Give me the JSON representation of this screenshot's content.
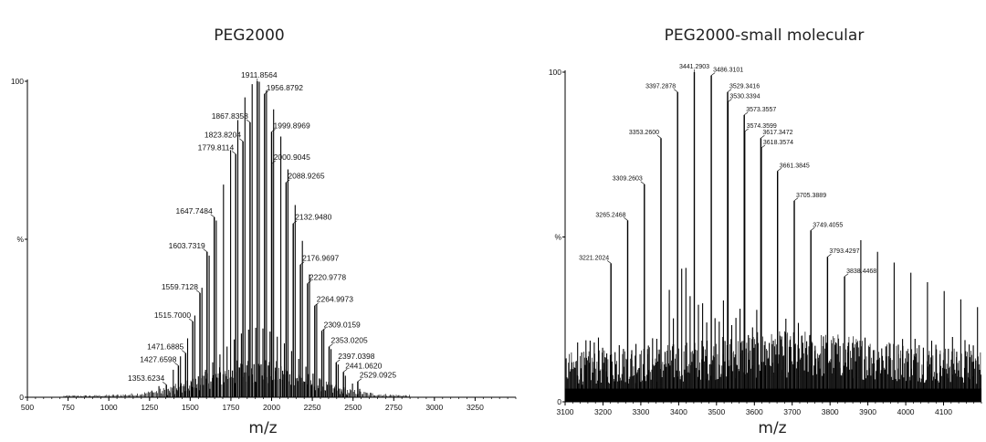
{
  "chart_data": [
    {
      "type": "bar",
      "title": "PEG2000",
      "xlabel": "m/z",
      "ylabel": "%",
      "xlim": [
        500,
        3500
      ],
      "ylim": [
        0,
        100
      ],
      "x_ticks": [
        "500",
        "750",
        "1000",
        "1250",
        "1500",
        "1750",
        "2000",
        "2250",
        "2500",
        "2750",
        "3000",
        "3250"
      ],
      "y_ticks": [
        "0",
        "100"
      ],
      "y_mid_label": "%",
      "labeled_peaks": [
        {
          "label": "1353.6234",
          "x": 1353.6,
          "y": 4
        },
        {
          "label": "1427.6598",
          "x": 1427.7,
          "y": 10
        },
        {
          "label": "1471.6885",
          "x": 1471.7,
          "y": 14
        },
        {
          "label": "1515.7000",
          "x": 1515.7,
          "y": 24
        },
        {
          "label": "1559.7128",
          "x": 1559.7,
          "y": 33
        },
        {
          "label": "1603.7319",
          "x": 1603.7,
          "y": 46
        },
        {
          "label": "1647.7484",
          "x": 1647.7,
          "y": 57
        },
        {
          "label": "1779.8114",
          "x": 1779.8,
          "y": 77
        },
        {
          "label": "1823.8204",
          "x": 1823.8,
          "y": 81
        },
        {
          "label": "1867.8358",
          "x": 1867.8,
          "y": 87
        },
        {
          "label": "1911.8564",
          "x": 1911.9,
          "y": 100
        },
        {
          "label": "1956.8792",
          "x": 1956.9,
          "y": 96
        },
        {
          "label": "1999.8969",
          "x": 1999.9,
          "y": 84
        },
        {
          "label": "2000.9045",
          "x": 2000.9,
          "y": 74
        },
        {
          "label": "2088.9265",
          "x": 2088.9,
          "y": 68
        },
        {
          "label": "2132.9480",
          "x": 2132.9,
          "y": 55
        },
        {
          "label": "2176.9697",
          "x": 2177.0,
          "y": 42
        },
        {
          "label": "2220.9778",
          "x": 2221.0,
          "y": 36
        },
        {
          "label": "2264.9973",
          "x": 2265.0,
          "y": 29
        },
        {
          "label": "2309.0159",
          "x": 2309.0,
          "y": 21
        },
        {
          "label": "2353.0205",
          "x": 2353.0,
          "y": 16
        },
        {
          "label": "2397.0398",
          "x": 2397.0,
          "y": 11
        },
        {
          "label": "2441.0620",
          "x": 2441.1,
          "y": 8
        },
        {
          "label": "2529.0925",
          "x": 2529.1,
          "y": 5
        }
      ]
    },
    {
      "type": "bar",
      "title": "PEG2000-small molecular",
      "xlabel": "m/z",
      "ylabel": "%",
      "xlim": [
        3100,
        4200
      ],
      "ylim": [
        0,
        100
      ],
      "x_ticks": [
        "3100",
        "3200",
        "3300",
        "3400",
        "3500",
        "3600",
        "3700",
        "3800",
        "3900",
        "4000",
        "4100"
      ],
      "y_ticks": [
        "0",
        "100"
      ],
      "y_mid_label": "%",
      "labeled_peaks": [
        {
          "label": "3221.2024",
          "x": 3221.2,
          "y": 42
        },
        {
          "label": "3265.2468",
          "x": 3265.2,
          "y": 55
        },
        {
          "label": "3309.2603",
          "x": 3309.3,
          "y": 66
        },
        {
          "label": "3353.2600",
          "x": 3353.3,
          "y": 80
        },
        {
          "label": "3397.2878",
          "x": 3397.3,
          "y": 94
        },
        {
          "label": "3441.2903",
          "x": 3441.3,
          "y": 100
        },
        {
          "label": "3486.3101",
          "x": 3486.3,
          "y": 99
        },
        {
          "label": "3529.3416",
          "x": 3529.3,
          "y": 94
        },
        {
          "label": "3530.3394",
          "x": 3530.3,
          "y": 91
        },
        {
          "label": "3573.3557",
          "x": 3573.4,
          "y": 87
        },
        {
          "label": "3574.3599",
          "x": 3574.4,
          "y": 82
        },
        {
          "label": "3617.3472",
          "x": 3617.3,
          "y": 80
        },
        {
          "label": "3618.3574",
          "x": 3618.4,
          "y": 77
        },
        {
          "label": "3661.3845",
          "x": 3661.4,
          "y": 70
        },
        {
          "label": "3705.3889",
          "x": 3705.4,
          "y": 61
        },
        {
          "label": "3749.4055",
          "x": 3749.4,
          "y": 52
        },
        {
          "label": "3793.4297",
          "x": 3793.4,
          "y": 44
        },
        {
          "label": "3838.4468",
          "x": 3838.4,
          "y": 38
        }
      ]
    }
  ]
}
